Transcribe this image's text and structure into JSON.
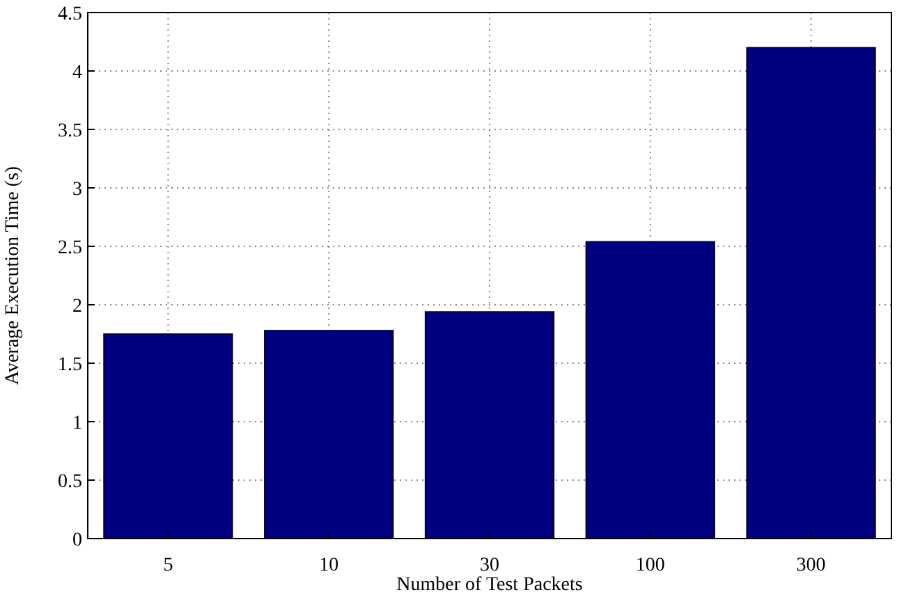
{
  "chart_data": {
    "type": "bar",
    "xlabel": "Number of Test Packets",
    "ylabel": "Average Execution Time (s)",
    "categories": [
      "5",
      "10",
      "30",
      "100",
      "300"
    ],
    "values": [
      1.75,
      1.78,
      1.94,
      2.54,
      4.2
    ],
    "color": "#000080",
    "ylim": [
      0,
      4.5
    ],
    "yticks": [
      0,
      0.5,
      1,
      1.5,
      2,
      2.5,
      3,
      3.5,
      4,
      4.5
    ],
    "grid": true
  }
}
